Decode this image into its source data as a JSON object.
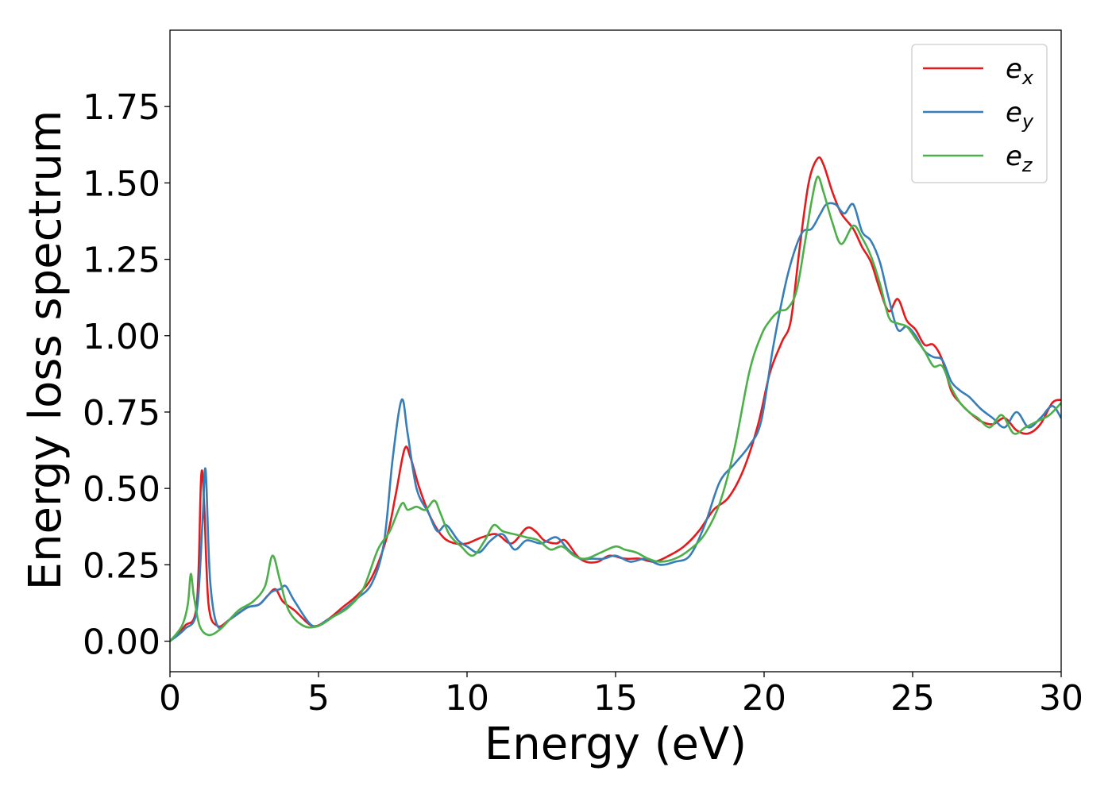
{
  "chart_data": {
    "type": "line",
    "xlabel": "Energy (eV)",
    "ylabel": "Energy loss spectrum",
    "xlim": [
      0,
      30
    ],
    "ylim": [
      -0.1,
      2.0
    ],
    "xticks": [
      "0",
      "5",
      "10",
      "15",
      "20",
      "25",
      "30"
    ],
    "yticks": [
      "0.00",
      "0.25",
      "0.50",
      "0.75",
      "1.00",
      "1.25",
      "1.50",
      "1.75"
    ],
    "grid": false,
    "legend_position": "top-right",
    "series": [
      {
        "name": "e_x",
        "symbol": "e",
        "subscript": "x",
        "color": "#e41a1c",
        "x": [
          0,
          0.5,
          0.9,
          1.05,
          1.15,
          1.3,
          1.6,
          2.0,
          2.6,
          3.0,
          3.3,
          3.55,
          3.8,
          4.2,
          4.8,
          5.3,
          5.8,
          6.3,
          6.8,
          7.3,
          7.6,
          7.9,
          8.1,
          8.4,
          8.8,
          9.2,
          9.6,
          10.0,
          10.5,
          11.0,
          11.5,
          12.0,
          12.3,
          12.6,
          13.0,
          13.3,
          13.7,
          14.0,
          14.4,
          14.8,
          15.3,
          15.8,
          16.3,
          16.8,
          17.3,
          17.8,
          18.3,
          18.8,
          19.3,
          19.8,
          20.2,
          20.6,
          20.9,
          21.2,
          21.5,
          21.8,
          22.0,
          22.3,
          22.6,
          23.0,
          23.3,
          23.6,
          23.9,
          24.2,
          24.5,
          24.8,
          25.1,
          25.4,
          25.7,
          26.0,
          26.3,
          26.6,
          26.9,
          27.3,
          27.7,
          28.1,
          28.5,
          28.9,
          29.3,
          29.7,
          30.0
        ],
        "y": [
          0.0,
          0.05,
          0.12,
          0.54,
          0.45,
          0.12,
          0.05,
          0.07,
          0.11,
          0.12,
          0.15,
          0.17,
          0.13,
          0.1,
          0.05,
          0.07,
          0.11,
          0.15,
          0.21,
          0.34,
          0.48,
          0.63,
          0.6,
          0.5,
          0.4,
          0.34,
          0.32,
          0.32,
          0.34,
          0.35,
          0.32,
          0.37,
          0.36,
          0.33,
          0.32,
          0.33,
          0.28,
          0.26,
          0.26,
          0.28,
          0.27,
          0.27,
          0.26,
          0.28,
          0.31,
          0.36,
          0.43,
          0.47,
          0.56,
          0.71,
          0.88,
          0.98,
          1.05,
          1.29,
          1.5,
          1.58,
          1.56,
          1.47,
          1.4,
          1.35,
          1.29,
          1.24,
          1.15,
          1.08,
          1.12,
          1.05,
          1.02,
          0.97,
          0.97,
          0.92,
          0.82,
          0.78,
          0.75,
          0.72,
          0.71,
          0.73,
          0.69,
          0.68,
          0.71,
          0.78,
          0.79
        ]
      },
      {
        "name": "e_y",
        "symbol": "e",
        "subscript": "y",
        "color": "#377eb8",
        "x": [
          0,
          0.5,
          0.9,
          1.1,
          1.2,
          1.35,
          1.6,
          2.0,
          2.6,
          3.0,
          3.4,
          3.7,
          3.9,
          4.2,
          4.8,
          5.3,
          5.8,
          6.3,
          6.8,
          7.2,
          7.5,
          7.8,
          8.0,
          8.3,
          8.7,
          9.0,
          9.3,
          9.7,
          10.0,
          10.4,
          10.8,
          11.2,
          11.6,
          12.0,
          12.5,
          13.0,
          13.4,
          13.8,
          14.2,
          14.6,
          15.0,
          15.5,
          16.0,
          16.5,
          17.0,
          17.5,
          18.0,
          18.5,
          19.0,
          19.5,
          19.9,
          20.3,
          20.7,
          21.0,
          21.3,
          21.6,
          21.9,
          22.1,
          22.4,
          22.7,
          23.0,
          23.3,
          23.6,
          23.9,
          24.2,
          24.5,
          24.8,
          25.1,
          25.4,
          25.7,
          26.0,
          26.3,
          26.6,
          26.9,
          27.3,
          27.7,
          28.1,
          28.5,
          28.9,
          29.3,
          29.7,
          30.0
        ],
        "y": [
          0.0,
          0.04,
          0.1,
          0.4,
          0.56,
          0.2,
          0.05,
          0.07,
          0.11,
          0.12,
          0.16,
          0.17,
          0.18,
          0.13,
          0.05,
          0.07,
          0.1,
          0.14,
          0.19,
          0.32,
          0.6,
          0.79,
          0.68,
          0.5,
          0.42,
          0.36,
          0.38,
          0.33,
          0.31,
          0.29,
          0.33,
          0.35,
          0.3,
          0.33,
          0.32,
          0.34,
          0.3,
          0.27,
          0.27,
          0.27,
          0.28,
          0.26,
          0.27,
          0.25,
          0.26,
          0.28,
          0.38,
          0.52,
          0.58,
          0.64,
          0.72,
          0.96,
          1.16,
          1.27,
          1.34,
          1.35,
          1.4,
          1.43,
          1.43,
          1.4,
          1.43,
          1.34,
          1.31,
          1.24,
          1.12,
          1.02,
          1.03,
          1.0,
          0.95,
          0.93,
          0.92,
          0.85,
          0.82,
          0.8,
          0.76,
          0.73,
          0.7,
          0.75,
          0.7,
          0.73,
          0.77,
          0.73
        ]
      },
      {
        "name": "e_z",
        "symbol": "e",
        "subscript": "z",
        "color": "#4daf4a",
        "x": [
          0,
          0.4,
          0.6,
          0.7,
          0.8,
          1.0,
          1.3,
          1.7,
          2.3,
          2.8,
          3.2,
          3.45,
          3.7,
          4.0,
          4.5,
          5.0,
          5.5,
          6.0,
          6.5,
          7.0,
          7.4,
          7.8,
          8.0,
          8.3,
          8.6,
          8.9,
          9.1,
          9.4,
          9.8,
          10.2,
          10.6,
          10.9,
          11.2,
          11.6,
          12.0,
          12.4,
          12.8,
          13.2,
          13.6,
          14.0,
          14.5,
          15.0,
          15.3,
          15.7,
          16.1,
          16.5,
          17.0,
          17.5,
          18.0,
          18.5,
          19.0,
          19.5,
          19.9,
          20.2,
          20.5,
          20.8,
          21.1,
          21.4,
          21.6,
          21.8,
          22.0,
          22.3,
          22.6,
          23.0,
          23.3,
          23.6,
          23.9,
          24.2,
          24.5,
          24.8,
          25.1,
          25.4,
          25.7,
          26.0,
          26.3,
          26.6,
          26.9,
          27.2,
          27.6,
          28.0,
          28.4,
          28.8,
          29.2,
          29.6,
          30.0
        ],
        "y": [
          0.0,
          0.05,
          0.12,
          0.22,
          0.15,
          0.05,
          0.02,
          0.04,
          0.1,
          0.13,
          0.18,
          0.28,
          0.2,
          0.1,
          0.05,
          0.05,
          0.08,
          0.11,
          0.17,
          0.3,
          0.36,
          0.45,
          0.43,
          0.44,
          0.43,
          0.46,
          0.42,
          0.35,
          0.31,
          0.28,
          0.33,
          0.38,
          0.36,
          0.35,
          0.34,
          0.33,
          0.3,
          0.31,
          0.28,
          0.27,
          0.29,
          0.31,
          0.3,
          0.29,
          0.27,
          0.26,
          0.27,
          0.3,
          0.35,
          0.45,
          0.63,
          0.88,
          1.0,
          1.05,
          1.08,
          1.09,
          1.15,
          1.32,
          1.44,
          1.52,
          1.47,
          1.37,
          1.3,
          1.36,
          1.32,
          1.26,
          1.17,
          1.06,
          1.04,
          1.03,
          0.99,
          0.95,
          0.9,
          0.9,
          0.83,
          0.78,
          0.75,
          0.73,
          0.7,
          0.74,
          0.68,
          0.7,
          0.72,
          0.74,
          0.78
        ]
      }
    ]
  }
}
